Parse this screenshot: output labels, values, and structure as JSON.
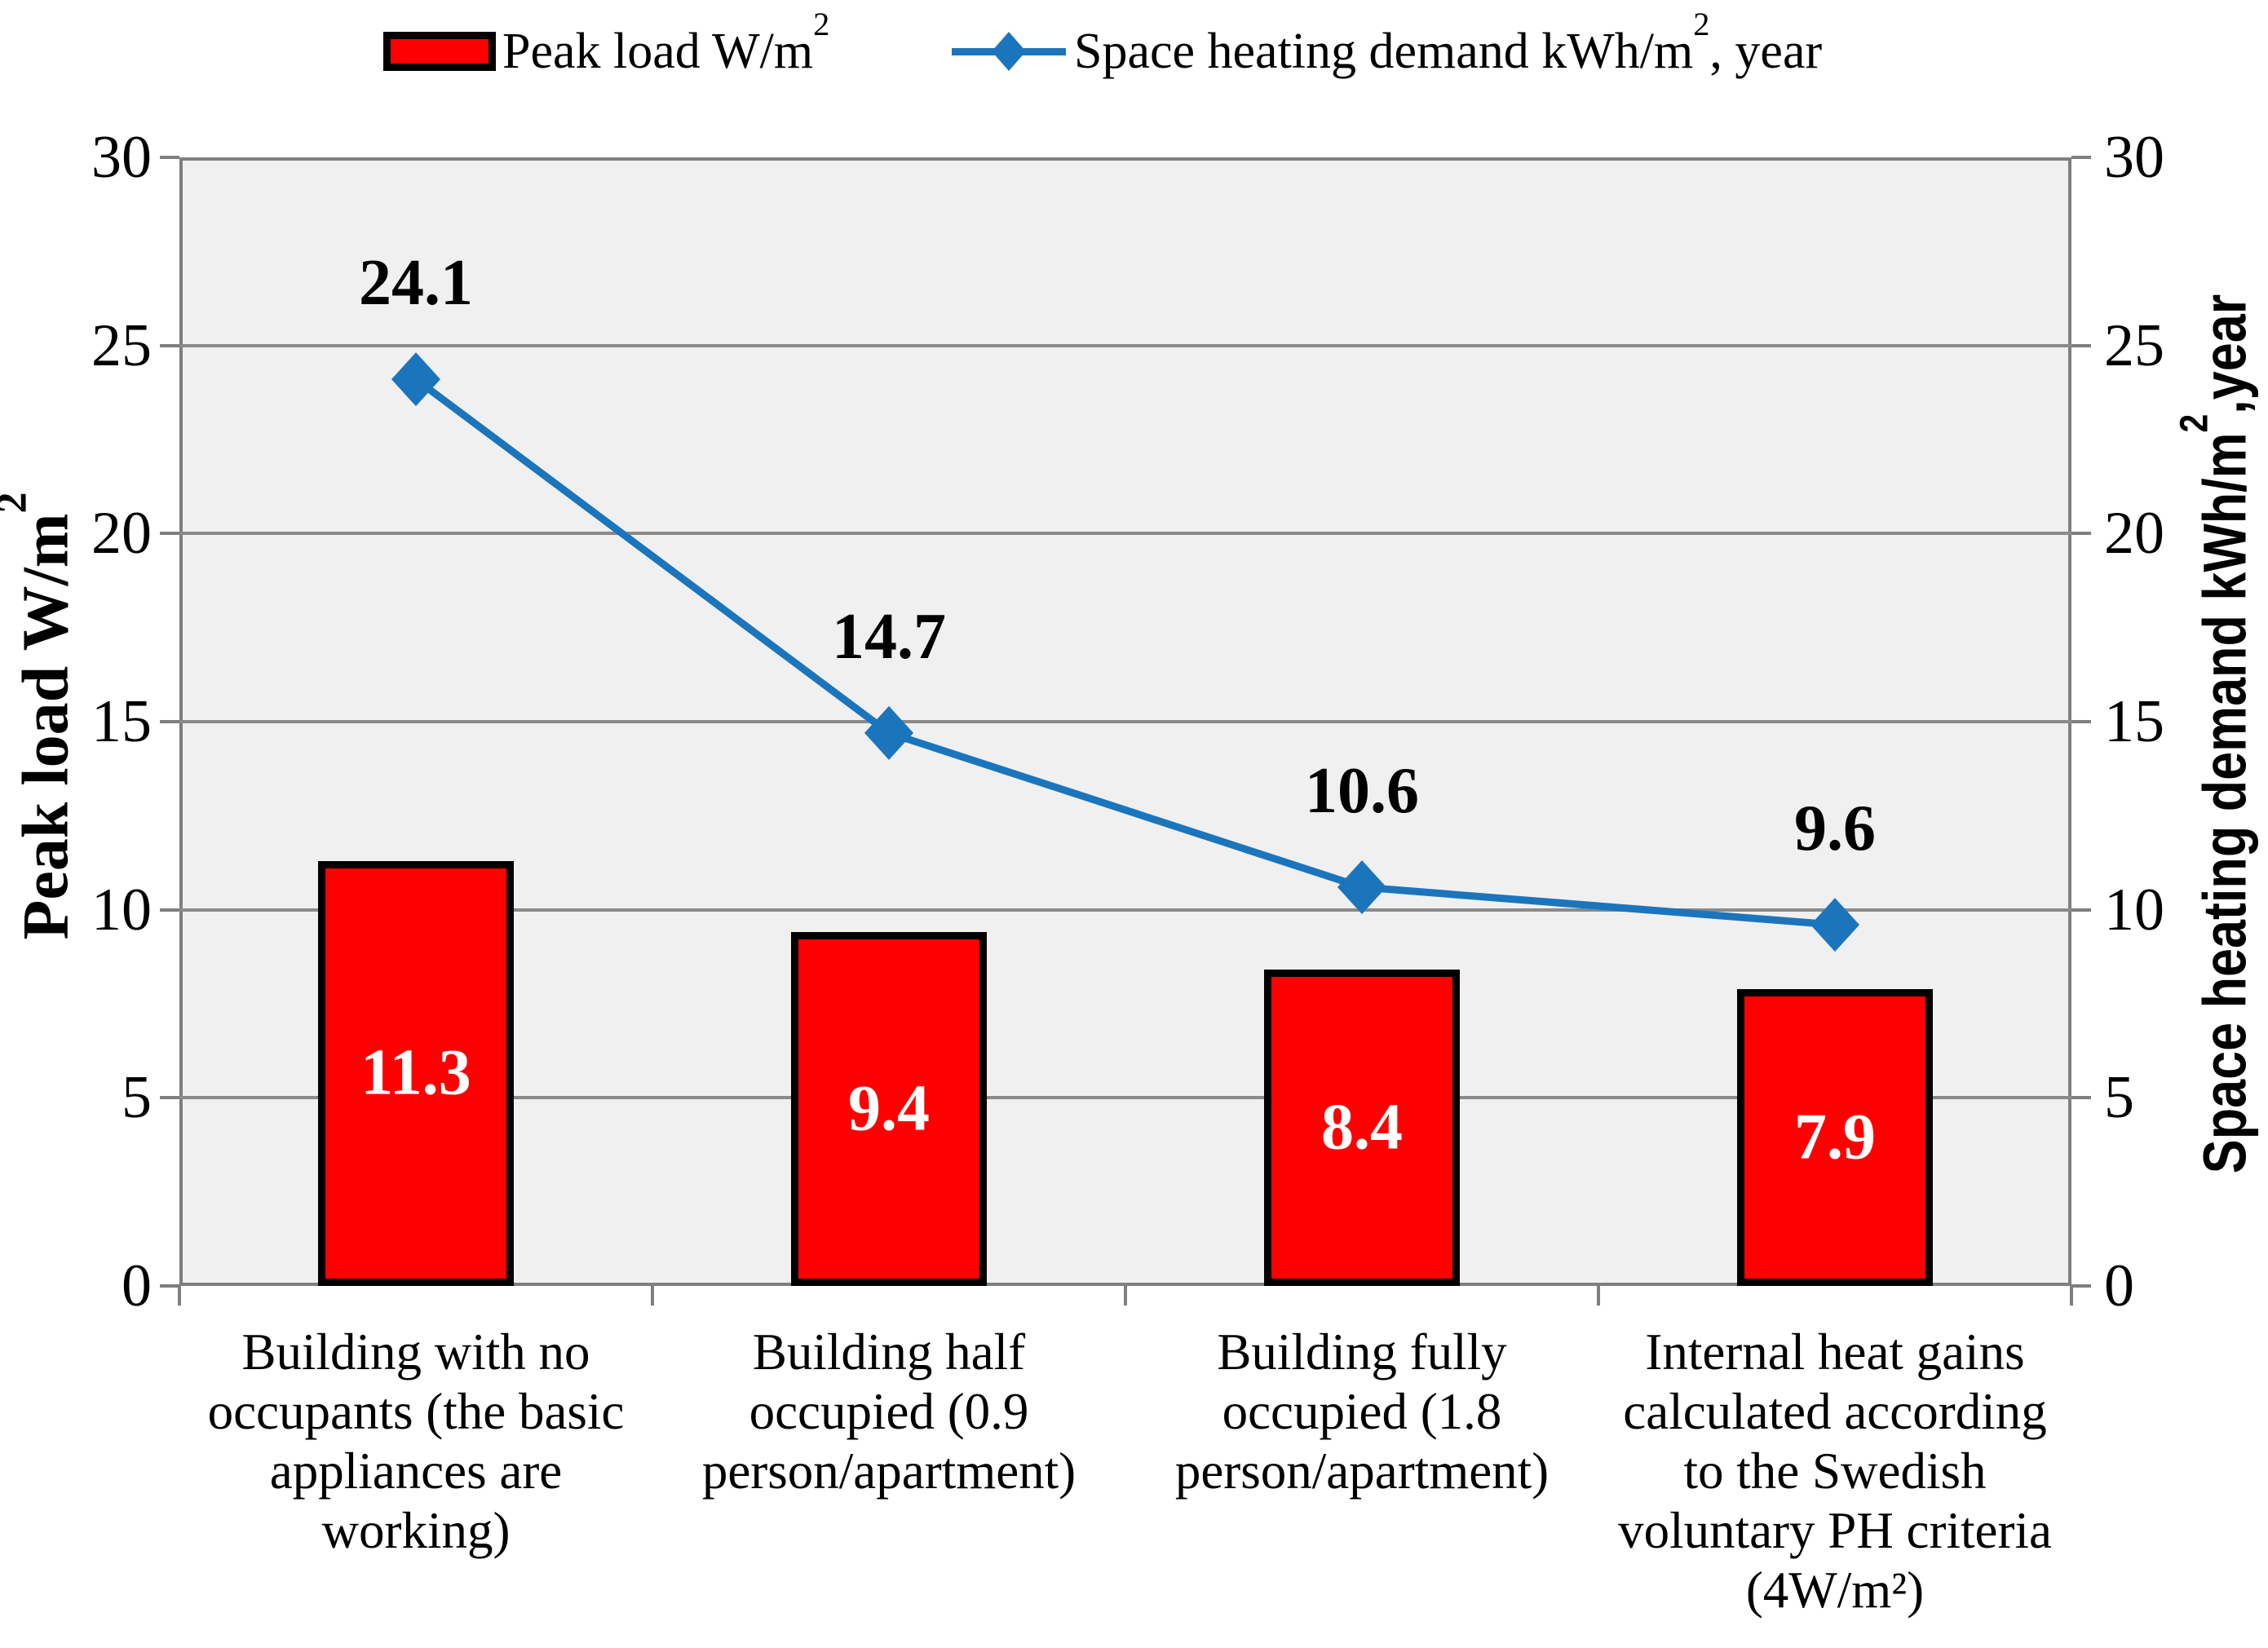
{
  "legend": {
    "items": [
      {
        "label_pre": "Peak load W/m",
        "label_sup": "2",
        "label_post": "",
        "swatch_color": "#FF0000",
        "swatch_border": "#000000"
      },
      {
        "label_pre": "Space heating demand kWh/m",
        "label_sup": "2",
        "label_post": ", year",
        "marker_color": "#1B75BC"
      }
    ]
  },
  "y_axis_left": {
    "title_pre": "Peak load W/m",
    "title_sup": "2",
    "ticks": [
      30,
      25,
      20,
      15,
      10,
      5,
      0
    ]
  },
  "y_axis_right": {
    "title_pre": "Space heating demand kWh/m",
    "title_sup": "2",
    "title_post": ",year",
    "ticks": [
      30,
      25,
      20,
      15,
      10,
      5,
      0
    ]
  },
  "chart_data": {
    "type": "combo-bar-line",
    "categories": [
      "Building with no occupants (the basic appliances are working)",
      "Building half occupied (0.9 person/apartment)",
      "Building fully occupied (1.8 person/apartment)",
      "Internal heat gains calculated according to the Swedish voluntary PH criteria (4W/m²)"
    ],
    "categories_wrapped": [
      "Building with no\noccupants (the basic\nappliances are\nworking)",
      "Building half\noccupied (0.9\nperson/apartment)",
      "Building fully\noccupied (1.8\nperson/apartment)",
      "Internal heat gains\ncalculated according\nto the Swedish\nvoluntary PH criteria\n(4W/m²)"
    ],
    "series": [
      {
        "name": "Peak load W/m²",
        "type": "bar",
        "values": [
          11.3,
          9.4,
          8.4,
          7.9
        ],
        "color": "#FF0000",
        "border_color": "#000000",
        "label_color": "#FFFFFF"
      },
      {
        "name": "Space heating demand kWh/m², year",
        "type": "line",
        "marker": "diamond",
        "values": [
          24.1,
          14.7,
          10.6,
          9.6
        ],
        "color": "#1B75BC",
        "label_color": "#000000"
      }
    ],
    "ylim": [
      0,
      30
    ],
    "ytick_step": 5,
    "grid": "horizontal",
    "plot_bg": "#F0F0F0",
    "grid_color": "#8a8a8a",
    "axis_color": "#7f7f7f",
    "legend_position": "top"
  }
}
